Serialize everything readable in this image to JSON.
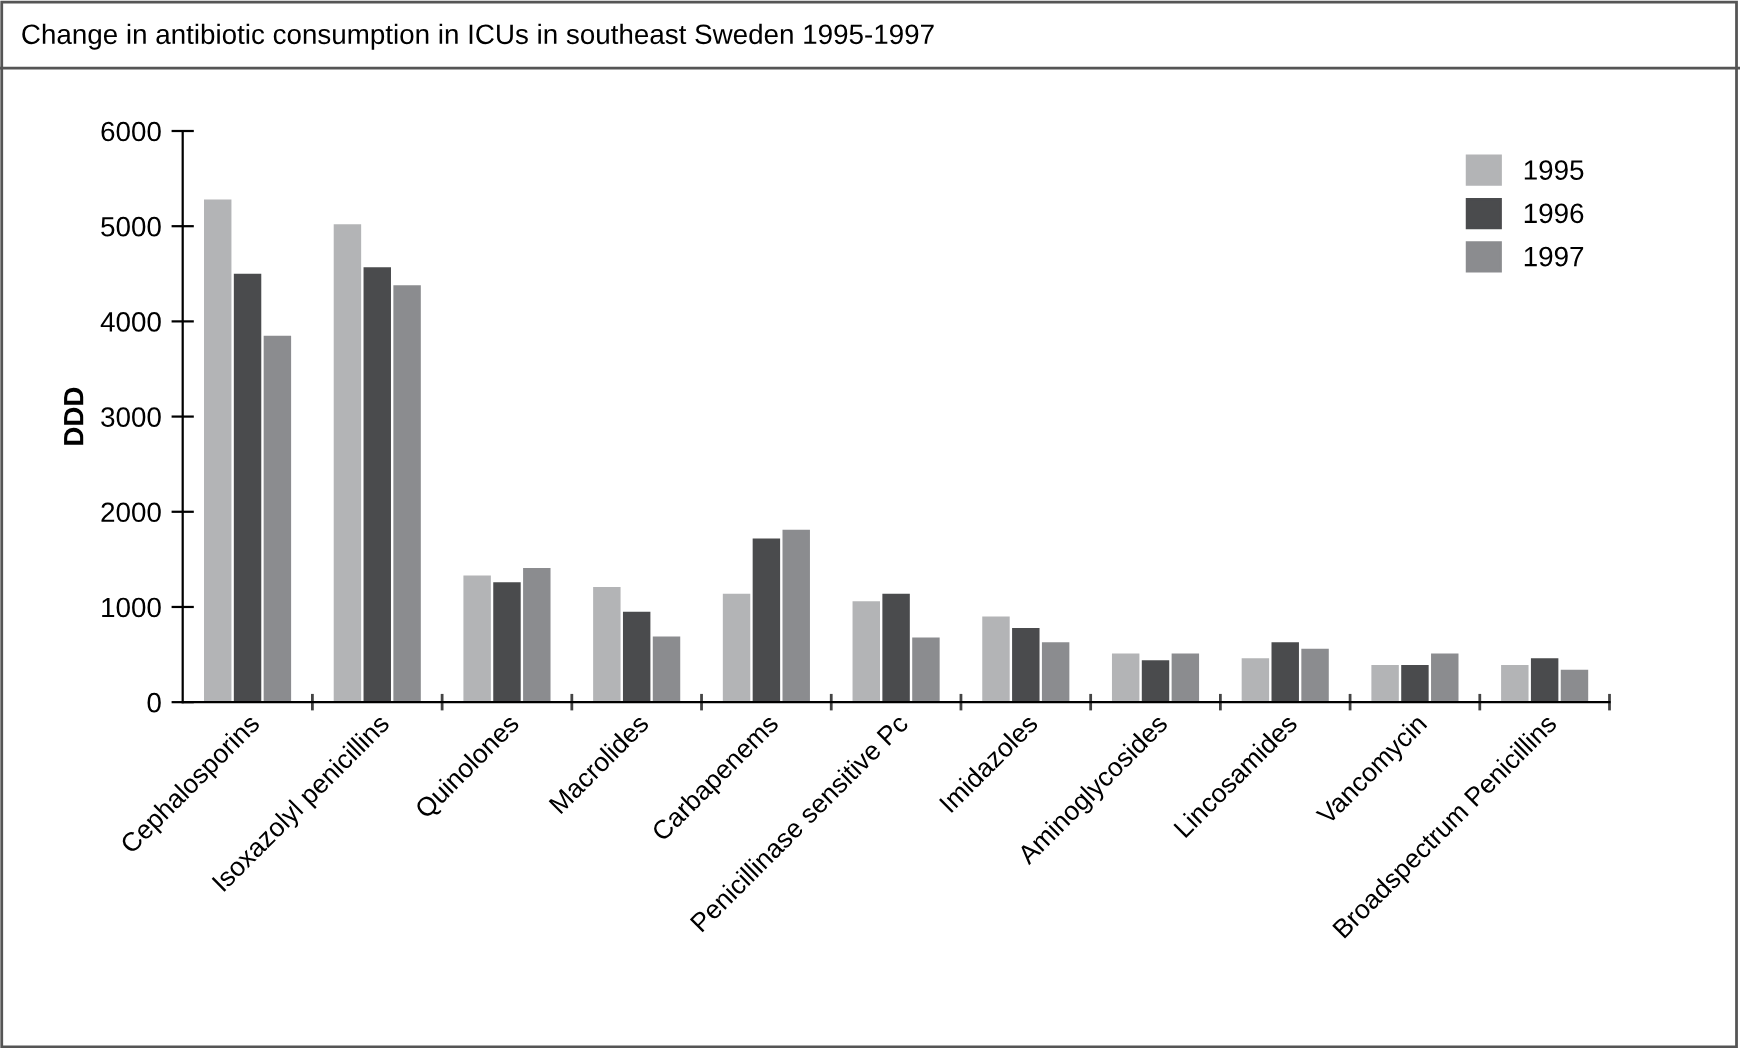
{
  "chart_data": {
    "type": "bar",
    "title": "Change in antibiotic consumption in ICUs in southeast Sweden 1995-1997",
    "ylabel": "DDD",
    "categories": [
      "Cephalosporins",
      "Isoxazolyl penicillins",
      "Quinolones",
      "Macrolides",
      "Carbapenems",
      "Penicillinase sensitive Pc",
      "Imidazoles",
      "Aminoglycosides",
      "Lincosamides",
      "Vancomycin",
      "Broadspectrum Penicillins"
    ],
    "series": [
      {
        "name": "1995",
        "color": "#b3b4b6",
        "values": [
          5280,
          5020,
          1330,
          1210,
          1140,
          1060,
          900,
          510,
          460,
          390,
          390
        ]
      },
      {
        "name": "1996",
        "color": "#4a4b4d",
        "values": [
          4500,
          4570,
          1260,
          950,
          1720,
          1140,
          780,
          440,
          630,
          390,
          460
        ]
      },
      {
        "name": "1997",
        "color": "#8b8c8f",
        "values": [
          3850,
          4380,
          1410,
          690,
          1810,
          680,
          630,
          510,
          560,
          510,
          340
        ]
      }
    ],
    "ylim": [
      0,
      6000
    ],
    "yticks": [
      0,
      1000,
      2000,
      3000,
      4000,
      5000,
      6000
    ],
    "grid": false,
    "legend": "top right"
  }
}
